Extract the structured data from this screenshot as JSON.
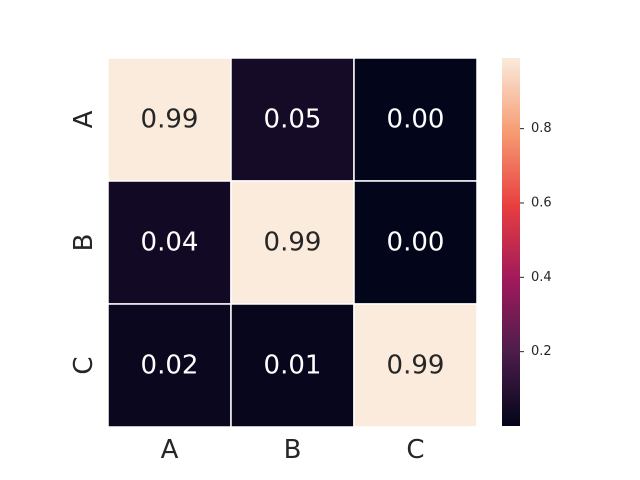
{
  "chart_data": {
    "type": "heatmap",
    "title": "",
    "xlabel": "",
    "ylabel": "",
    "x_categories": [
      "A",
      "B",
      "C"
    ],
    "y_categories": [
      "A",
      "B",
      "C"
    ],
    "values": [
      [
        0.99,
        0.05,
        0.0
      ],
      [
        0.04,
        0.99,
        0.0
      ],
      [
        0.02,
        0.01,
        0.99
      ]
    ],
    "value_labels": [
      [
        "0.99",
        "0.05",
        "0.00"
      ],
      [
        "0.04",
        "0.99",
        "0.00"
      ],
      [
        "0.02",
        "0.01",
        "0.99"
      ]
    ],
    "colorbar": {
      "min": 0.0,
      "max": 0.99,
      "ticks": [
        0.2,
        0.4,
        0.6,
        0.8
      ],
      "tick_labels": [
        "0.2",
        "0.4",
        "0.6",
        "0.8"
      ],
      "placement": "right"
    },
    "colormap": "rocket",
    "colormap_stops": [
      "#03051a",
      "#4c1d4b",
      "#a11a5b",
      "#e83f3f",
      "#f69c73",
      "#faebdd"
    ],
    "grid": false,
    "legend": "colorbar-right"
  }
}
